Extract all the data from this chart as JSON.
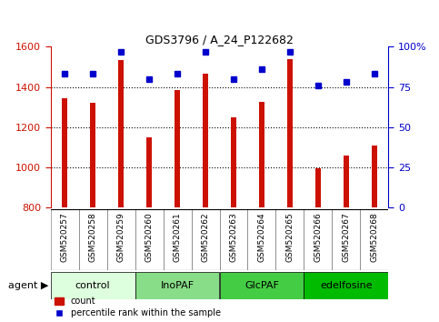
{
  "title": "GDS3796 / A_24_P122682",
  "samples": [
    "GSM520257",
    "GSM520258",
    "GSM520259",
    "GSM520260",
    "GSM520261",
    "GSM520262",
    "GSM520263",
    "GSM520264",
    "GSM520265",
    "GSM520266",
    "GSM520267",
    "GSM520268"
  ],
  "count_values": [
    1345,
    1320,
    1535,
    1148,
    1385,
    1465,
    1250,
    1325,
    1540,
    998,
    1058,
    1110
  ],
  "percentile_values": [
    83,
    83,
    97,
    80,
    83,
    97,
    80,
    86,
    97,
    76,
    78,
    83
  ],
  "ylim_left": [
    800,
    1600
  ],
  "ylim_right": [
    0,
    100
  ],
  "yticks_left": [
    800,
    1000,
    1200,
    1400,
    1600
  ],
  "yticks_right": [
    0,
    25,
    50,
    75,
    100
  ],
  "yticklabels_right": [
    "0",
    "25",
    "50",
    "75",
    "100%"
  ],
  "bar_color": "#cc1100",
  "dot_color": "#0000cc",
  "groups": [
    {
      "label": "control",
      "start": 0,
      "end": 3,
      "color": "#ddffdd"
    },
    {
      "label": "InoPAF",
      "start": 3,
      "end": 6,
      "color": "#88dd88"
    },
    {
      "label": "GlcPAF",
      "start": 6,
      "end": 9,
      "color": "#44cc44"
    },
    {
      "label": "edelfosine",
      "start": 9,
      "end": 12,
      "color": "#00bb00"
    }
  ],
  "agent_label": "agent",
  "legend_count_label": "count",
  "legend_pct_label": "percentile rank within the sample",
  "left_tick_color": "#cc1100",
  "right_tick_color": "#0000cc",
  "bar_bottom": 800,
  "bar_width": 0.18,
  "dot_marker": "s",
  "dot_size": 5,
  "xlabel_bg": "#cccccc",
  "plot_bg": "#ffffff",
  "border_color": "#888888"
}
